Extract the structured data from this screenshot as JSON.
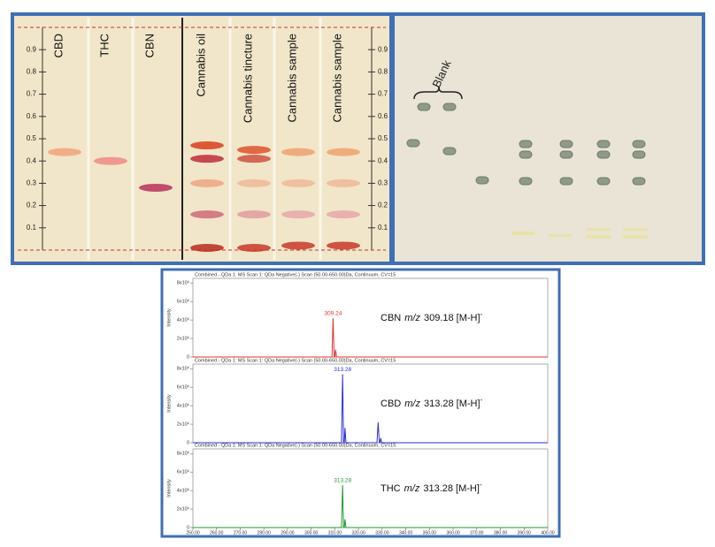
{
  "chart_data": [
    {
      "type": "tlc",
      "lanes": [
        {
          "name": "CBD",
          "spots": [
            0.44
          ],
          "colors": [
            "#f2a27a"
          ]
        },
        {
          "name": "THC",
          "spots": [
            0.4
          ],
          "colors": [
            "#ee8a86"
          ]
        },
        {
          "name": "CBN",
          "spots": [
            0.28
          ],
          "colors": [
            "#b8305a"
          ]
        },
        {
          "name": "Cannabis oil",
          "spots": [
            0.47,
            0.41,
            0.3,
            0.16,
            0.01
          ],
          "colors": [
            "#d9401a",
            "#c02a3a",
            "#eea580",
            "#cf6a78",
            "#b82a20"
          ]
        },
        {
          "name": "Cannabis tincture",
          "spots": [
            0.45,
            0.41,
            0.3,
            0.16,
            0.01
          ],
          "colors": [
            "#e0502a",
            "#d05040",
            "#f0b796",
            "#e29aa0",
            "#c83828"
          ]
        },
        {
          "name": "Cannabis sample",
          "spots": [
            0.44,
            0.3,
            0.16,
            0.02
          ],
          "colors": [
            "#f0a070",
            "#f0b796",
            "#e6a6aa",
            "#c83828"
          ]
        },
        {
          "name": "Cannabis sample",
          "spots": [
            0.44,
            0.3,
            0.16,
            0.02
          ],
          "colors": [
            "#f0a070",
            "#f0b796",
            "#e6a6aa",
            "#c83828"
          ]
        }
      ],
      "ylim": [
        0,
        1
      ],
      "yticks": [
        0.1,
        0.2,
        0.3,
        0.4,
        0.5,
        0.6,
        0.7,
        0.8,
        0.9
      ]
    },
    {
      "type": "line",
      "title": "Combined - QDa 1: MS Scan 1: QDa Negative(-) Scan (50.00-650.00)Da, Continuum, CV=15",
      "y_label": "Intensity",
      "color": "#e0322f",
      "x": [
        250,
        308.8,
        309.24,
        309.7,
        310.0,
        310.3,
        310.7,
        400
      ],
      "values": [
        0,
        0,
        4200000,
        0,
        0,
        800000,
        0,
        0
      ],
      "peak_label": "309.24",
      "annotation": {
        "compound": "CBN",
        "mz": "m/z",
        "ion": "309.18 [M-H]",
        "charge": "-"
      },
      "xlim": [
        250,
        400
      ],
      "ylim": [
        0,
        8500000
      ],
      "yticks": [
        0,
        {
          "value": 2000000,
          "label": "2x10⁶"
        },
        {
          "value": 4000000,
          "label": "4x10⁶"
        },
        {
          "value": 6000000,
          "label": "6x10⁶"
        },
        {
          "value": 8000000,
          "label": "8x10⁶"
        }
      ]
    },
    {
      "type": "line",
      "title": "Combined - QDa 1: MS Scan 1: QDa Negative(-) Scan (50.00-650.00)Da, Continuum, CV=15",
      "y_label": "Intensity",
      "color": "#2d2fd6",
      "x": [
        250,
        312.8,
        313.28,
        313.7,
        314.0,
        314.3,
        314.7,
        327.8,
        328.3,
        328.8,
        329.1,
        329.4,
        329.8,
        400
      ],
      "values": [
        0,
        0,
        7400000,
        0,
        0,
        1600000,
        0,
        0,
        2200000,
        0,
        0,
        500000,
        0,
        0
      ],
      "peak_label": "313.28",
      "annotation": {
        "compound": "CBD",
        "mz": "m/z",
        "ion": "313.28 [M-H]",
        "charge": "-"
      },
      "xlim": [
        250,
        400
      ],
      "ylim": [
        0,
        8500000
      ],
      "yticks": [
        0,
        {
          "value": 2000000,
          "label": "2x10⁶"
        },
        {
          "value": 4000000,
          "label": "4x10⁶"
        },
        {
          "value": 6000000,
          "label": "6x10⁶"
        },
        {
          "value": 8000000,
          "label": "8x10⁶"
        }
      ]
    },
    {
      "type": "line",
      "title": "Combined - QDa 1: MS Scan 1: QDa Negative(-) Scan (50.00-650.00)Da, Continuum, CV=15",
      "y_label": "Intensity",
      "color": "#1f9a2e",
      "x": [
        250,
        312.8,
        313.28,
        313.7,
        314.0,
        314.3,
        314.7,
        400
      ],
      "values": [
        0,
        0,
        4600000,
        0,
        0,
        900000,
        0,
        0
      ],
      "peak_label": "313.28",
      "annotation": {
        "compound": "THC",
        "mz": "m/z",
        "ion": "313.28 [M-H]",
        "charge": "-"
      },
      "xlim": [
        250,
        400
      ],
      "ylim": [
        0,
        8500000
      ],
      "yticks": [
        0,
        {
          "value": 2000000,
          "label": "2x10⁶"
        },
        {
          "value": 4000000,
          "label": "4x10⁶"
        },
        {
          "value": 6000000,
          "label": "6x10⁶"
        },
        {
          "value": 8000000,
          "label": "8x10⁶"
        }
      ],
      "xticks": [
        {
          "value": 250,
          "label": "250.00"
        },
        {
          "value": 260,
          "label": "260.00"
        },
        {
          "value": 270,
          "label": "270.00"
        },
        {
          "value": 280,
          "label": "280.00"
        },
        {
          "value": 290,
          "label": "290.00"
        },
        {
          "value": 300,
          "label": "300.00"
        },
        {
          "value": 310,
          "label": "310.00"
        },
        {
          "value": 320,
          "label": "320.00"
        },
        {
          "value": 330,
          "label": "330.00"
        },
        {
          "value": 340,
          "label": "340.00"
        },
        {
          "value": 350,
          "label": "350.00"
        },
        {
          "value": 360,
          "label": "360.00"
        },
        {
          "value": 370,
          "label": "370.00"
        },
        {
          "value": 380,
          "label": "380.00"
        },
        {
          "value": 390,
          "label": "390.00"
        },
        {
          "value": 400,
          "label": "400.00"
        }
      ]
    }
  ],
  "photo": {
    "label": "Blank"
  }
}
